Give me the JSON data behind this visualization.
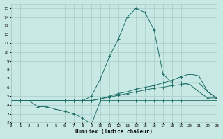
{
  "xlabel": "Humidex (Indice chaleur)",
  "bg_color": "#c8e8e4",
  "grid_color": "#a8ccca",
  "line_color": "#1e6e68",
  "xlim": [
    0,
    23
  ],
  "ylim": [
    2,
    15.5
  ],
  "xticks": [
    0,
    1,
    2,
    3,
    4,
    5,
    6,
    7,
    8,
    9,
    10,
    11,
    12,
    13,
    14,
    15,
    16,
    17,
    18,
    19,
    20,
    21,
    22,
    23
  ],
  "yticks": [
    2,
    3,
    4,
    5,
    6,
    7,
    8,
    9,
    10,
    11,
    12,
    13,
    14,
    15
  ],
  "series": [
    {
      "x": [
        0,
        1,
        2,
        3,
        4,
        5,
        6,
        7,
        8,
        9,
        10,
        11,
        12,
        13,
        14,
        15,
        16,
        17,
        18,
        19,
        20,
        21,
        22,
        23
      ],
      "y": [
        4.5,
        4.5,
        4.5,
        4.5,
        4.5,
        4.5,
        4.5,
        4.5,
        4.5,
        5.0,
        7.0,
        9.5,
        11.5,
        14.0,
        15.0,
        14.5,
        12.5,
        7.5,
        6.5,
        6.5,
        6.3,
        5.5,
        4.8,
        4.8
      ]
    },
    {
      "x": [
        0,
        1,
        2,
        3,
        4,
        5,
        6,
        7,
        8,
        9,
        10,
        11,
        12,
        13,
        14,
        15,
        16,
        17,
        18,
        19,
        20,
        21,
        22,
        23
      ],
      "y": [
        4.5,
        4.5,
        4.5,
        4.5,
        4.5,
        4.5,
        4.5,
        4.5,
        4.5,
        4.5,
        4.7,
        5.0,
        5.3,
        5.5,
        5.8,
        6.0,
        6.2,
        6.5,
        6.8,
        7.2,
        7.5,
        7.3,
        5.5,
        4.8
      ]
    },
    {
      "x": [
        0,
        1,
        2,
        3,
        4,
        5,
        6,
        7,
        8,
        9,
        10,
        11,
        12,
        13,
        14,
        15,
        16,
        17,
        18,
        19,
        20,
        21,
        22,
        23
      ],
      "y": [
        4.5,
        4.5,
        4.5,
        4.5,
        4.5,
        4.5,
        4.5,
        4.5,
        4.5,
        4.5,
        4.7,
        4.9,
        5.1,
        5.3,
        5.5,
        5.7,
        5.9,
        6.0,
        6.2,
        6.3,
        6.5,
        6.5,
        5.5,
        4.8
      ]
    },
    {
      "x": [
        0,
        1,
        2,
        3,
        4,
        5,
        6,
        7,
        8,
        9,
        10,
        11,
        12,
        13,
        14,
        15,
        16,
        17,
        18,
        19,
        20,
        21,
        22,
        23
      ],
      "y": [
        4.5,
        4.5,
        4.5,
        3.8,
        3.8,
        3.5,
        3.3,
        3.0,
        2.5,
        1.8,
        4.5,
        4.5,
        4.5,
        4.5,
        4.5,
        4.5,
        4.5,
        4.5,
        4.5,
        4.5,
        4.5,
        4.5,
        4.5,
        4.5
      ]
    }
  ]
}
